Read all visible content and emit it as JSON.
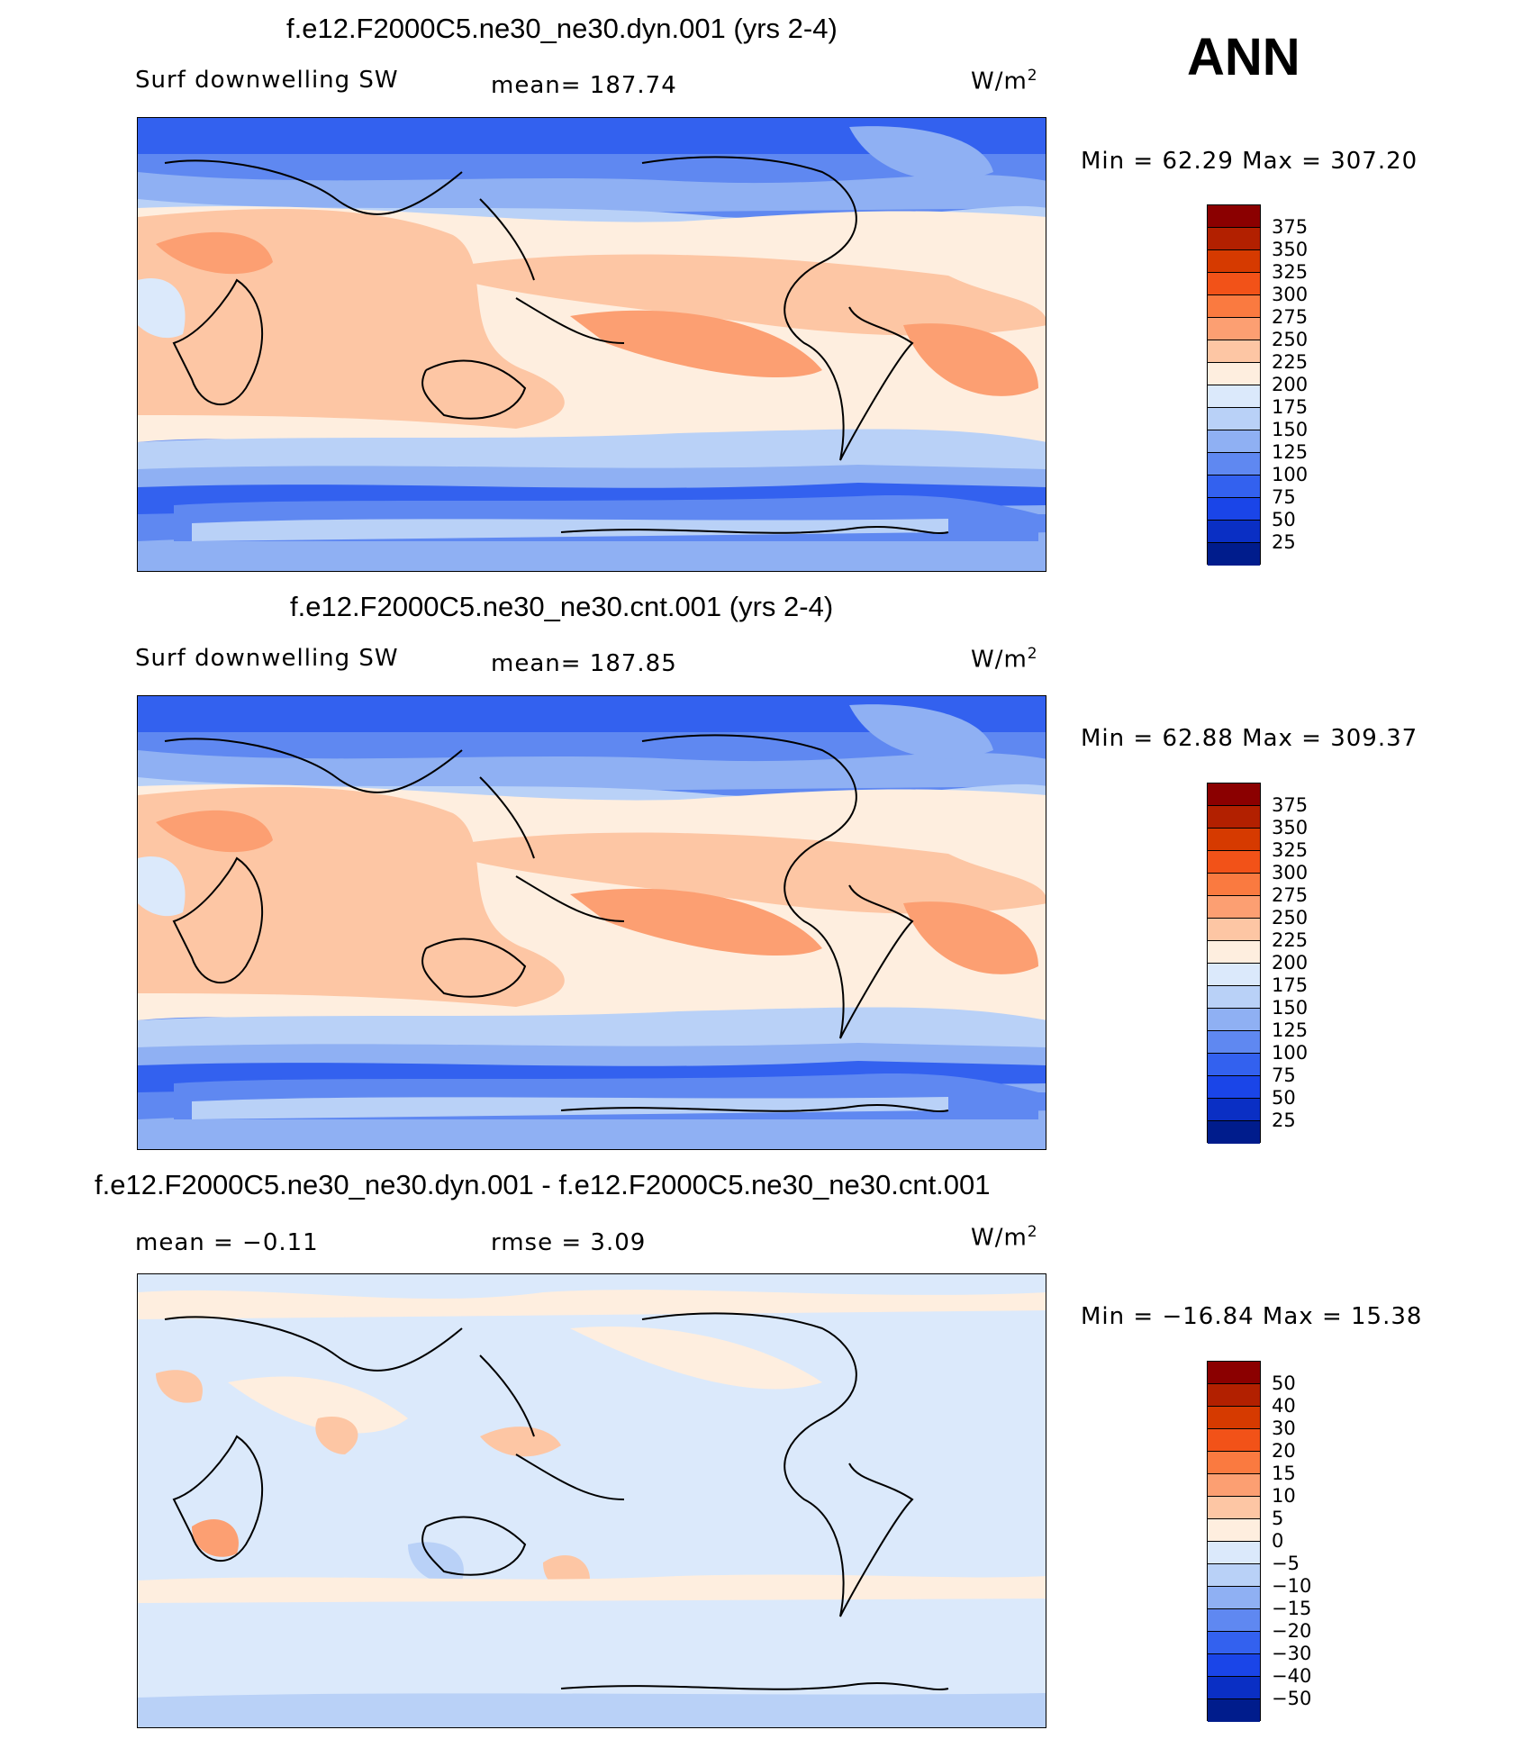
{
  "season": "ANN",
  "units": "W/m",
  "units_sup": "2",
  "panels": [
    {
      "title": "f.e12.F2000C5.ne30_ne30.dyn.001 (yrs 2-4)",
      "field": "Surf downwelling SW",
      "stat1": "mean= 187.74",
      "stat2": "",
      "minmax": "Min =   62.29  Max =  307.20",
      "ticks": [
        "375",
        "350",
        "325",
        "300",
        "275",
        "250",
        "225",
        "200",
        "175",
        "150",
        "125",
        "100",
        "75",
        "50",
        "25"
      ]
    },
    {
      "title": "f.e12.F2000C5.ne30_ne30.cnt.001 (yrs 2-4)",
      "field": "Surf downwelling SW",
      "stat1": "mean= 187.85",
      "stat2": "",
      "minmax": "Min =   62.88  Max =  309.37",
      "ticks": [
        "375",
        "350",
        "325",
        "300",
        "275",
        "250",
        "225",
        "200",
        "175",
        "150",
        "125",
        "100",
        "75",
        "50",
        "25"
      ]
    },
    {
      "title": "f.e12.F2000C5.ne30_ne30.dyn.001 - f.e12.F2000C5.ne30_ne30.cnt.001",
      "field": "mean =   −0.11",
      "stat1": "rmse =    3.09",
      "stat2": "",
      "minmax": "Min = −16.84  Max =   15.38",
      "ticks": [
        "50",
        "40",
        "30",
        "20",
        "15",
        "10",
        "5",
        "0",
        "−5",
        "−10",
        "−15",
        "−20",
        "−30",
        "−40",
        "−50"
      ]
    }
  ],
  "colormap": [
    "#8b0000",
    "#b22000",
    "#d63a00",
    "#f25218",
    "#fa7a40",
    "#fc9f72",
    "#fdc6a4",
    "#feeedf",
    "#dbe9fb",
    "#b9d1f7",
    "#8fb0f3",
    "#5f88f1",
    "#3361ef",
    "#1a45e8",
    "#0a2fc4",
    "#001c8c"
  ],
  "colors": {
    "land_outline": "#000000"
  }
}
